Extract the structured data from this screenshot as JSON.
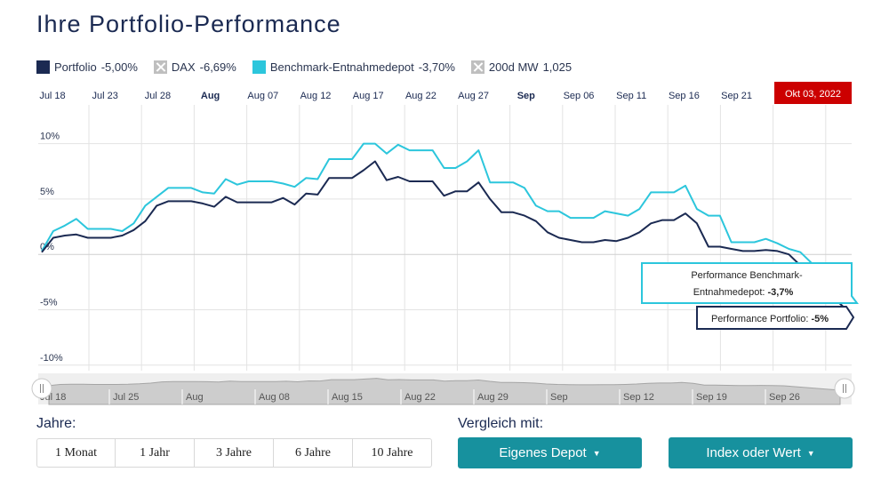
{
  "title": "Ihre Portfolio-Performance",
  "legend": [
    {
      "name": "Portfolio",
      "value": "-5,00%",
      "color": "#1b2a52",
      "active": true
    },
    {
      "name": "DAX",
      "value": "-6,69%",
      "color": "#bfbfbf",
      "active": false
    },
    {
      "name": "Benchmark-Entnahmedepot",
      "value": "-3,70%",
      "color": "#2cc6dc",
      "active": true
    },
    {
      "name": "200d MW",
      "value": "1,025",
      "color": "#bfbfbf",
      "active": false
    }
  ],
  "chart_data": {
    "type": "line",
    "top_axis_labels": [
      "Jul 18",
      "Jul 23",
      "Jul 28",
      "Aug",
      "Aug 07",
      "Aug 12",
      "Aug 17",
      "Aug 22",
      "Aug 27",
      "Sep",
      "Sep 06",
      "Sep 11",
      "Sep 16",
      "Sep 21"
    ],
    "top_axis_bold": [
      "Aug",
      "Sep"
    ],
    "current_date_label": "Okt 03, 2022",
    "y_ticks": [
      "10%",
      "5%",
      "0%",
      "-5%",
      "-10%"
    ],
    "y_tick_values": [
      10,
      5,
      0,
      -5,
      -10
    ],
    "ylim": [
      -10.5,
      13.5
    ],
    "series": [
      {
        "name": "Portfolio",
        "color": "#1b2a52",
        "values": [
          0.2,
          1.5,
          1.7,
          1.8,
          1.5,
          1.5,
          1.5,
          1.7,
          2.2,
          3.0,
          4.4,
          4.8,
          4.8,
          4.8,
          4.6,
          4.3,
          5.2,
          4.7,
          4.7,
          4.7,
          4.7,
          5.1,
          4.5,
          5.5,
          5.4,
          6.9,
          6.9,
          6.9,
          7.6,
          8.4,
          6.7,
          7.0,
          6.6,
          6.6,
          6.6,
          5.3,
          5.7,
          5.7,
          6.5,
          5.0,
          3.8,
          3.8,
          3.5,
          3.0,
          2.0,
          1.5,
          1.3,
          1.1,
          1.1,
          1.3,
          1.2,
          1.5,
          2.0,
          2.8,
          3.1,
          3.1,
          3.7,
          2.8,
          0.7,
          0.7,
          0.5,
          0.3,
          0.3,
          0.4,
          0.3,
          0.0,
          -1.0,
          -2.0,
          -3.0,
          -4.0,
          -5.0
        ]
      },
      {
        "name": "Benchmark-Entnahmedepot",
        "color": "#2cc6dc",
        "values": [
          0.3,
          2.1,
          2.6,
          3.2,
          2.3,
          2.3,
          2.3,
          2.1,
          2.8,
          4.4,
          5.2,
          6.0,
          6.0,
          6.0,
          5.6,
          5.5,
          6.8,
          6.3,
          6.6,
          6.6,
          6.6,
          6.4,
          6.1,
          6.9,
          6.8,
          8.6,
          8.6,
          8.6,
          10.0,
          10.0,
          9.1,
          9.9,
          9.4,
          9.4,
          9.4,
          7.8,
          7.8,
          8.4,
          9.4,
          6.5,
          6.5,
          6.5,
          6.0,
          4.4,
          3.9,
          3.9,
          3.3,
          3.3,
          3.3,
          3.9,
          3.7,
          3.5,
          4.1,
          5.6,
          5.6,
          5.6,
          6.2,
          4.1,
          3.5,
          3.5,
          1.1,
          1.1,
          1.1,
          1.4,
          1.0,
          0.5,
          0.2,
          -0.8,
          -1.8,
          -2.8,
          -3.7
        ]
      }
    ],
    "navigator_labels": [
      "Jul 18",
      "Jul 25",
      "Aug",
      "Aug 08",
      "Aug 15",
      "Aug 22",
      "Aug 29",
      "Sep",
      "Sep 12",
      "Sep 19",
      "Sep 26"
    ],
    "tooltip_benchmark": {
      "text_line1": "Performance Benchmark-",
      "text_line2": "Entnahmedepot: ",
      "value": "-3,7%"
    },
    "tooltip_portfolio": {
      "text": "Performance Portfolio: ",
      "value": "-5%"
    }
  },
  "years_label": "Jahre:",
  "years": [
    "1 Monat",
    "1 Jahr",
    "3 Jahre",
    "6 Jahre",
    "10 Jahre"
  ],
  "compare_label": "Vergleich mit:",
  "compare_buttons": [
    "Eigenes Depot",
    "Index oder Wert"
  ],
  "colors": {
    "accent": "#17919e",
    "date_badge": "#cc0000",
    "navy": "#1b2a52"
  }
}
